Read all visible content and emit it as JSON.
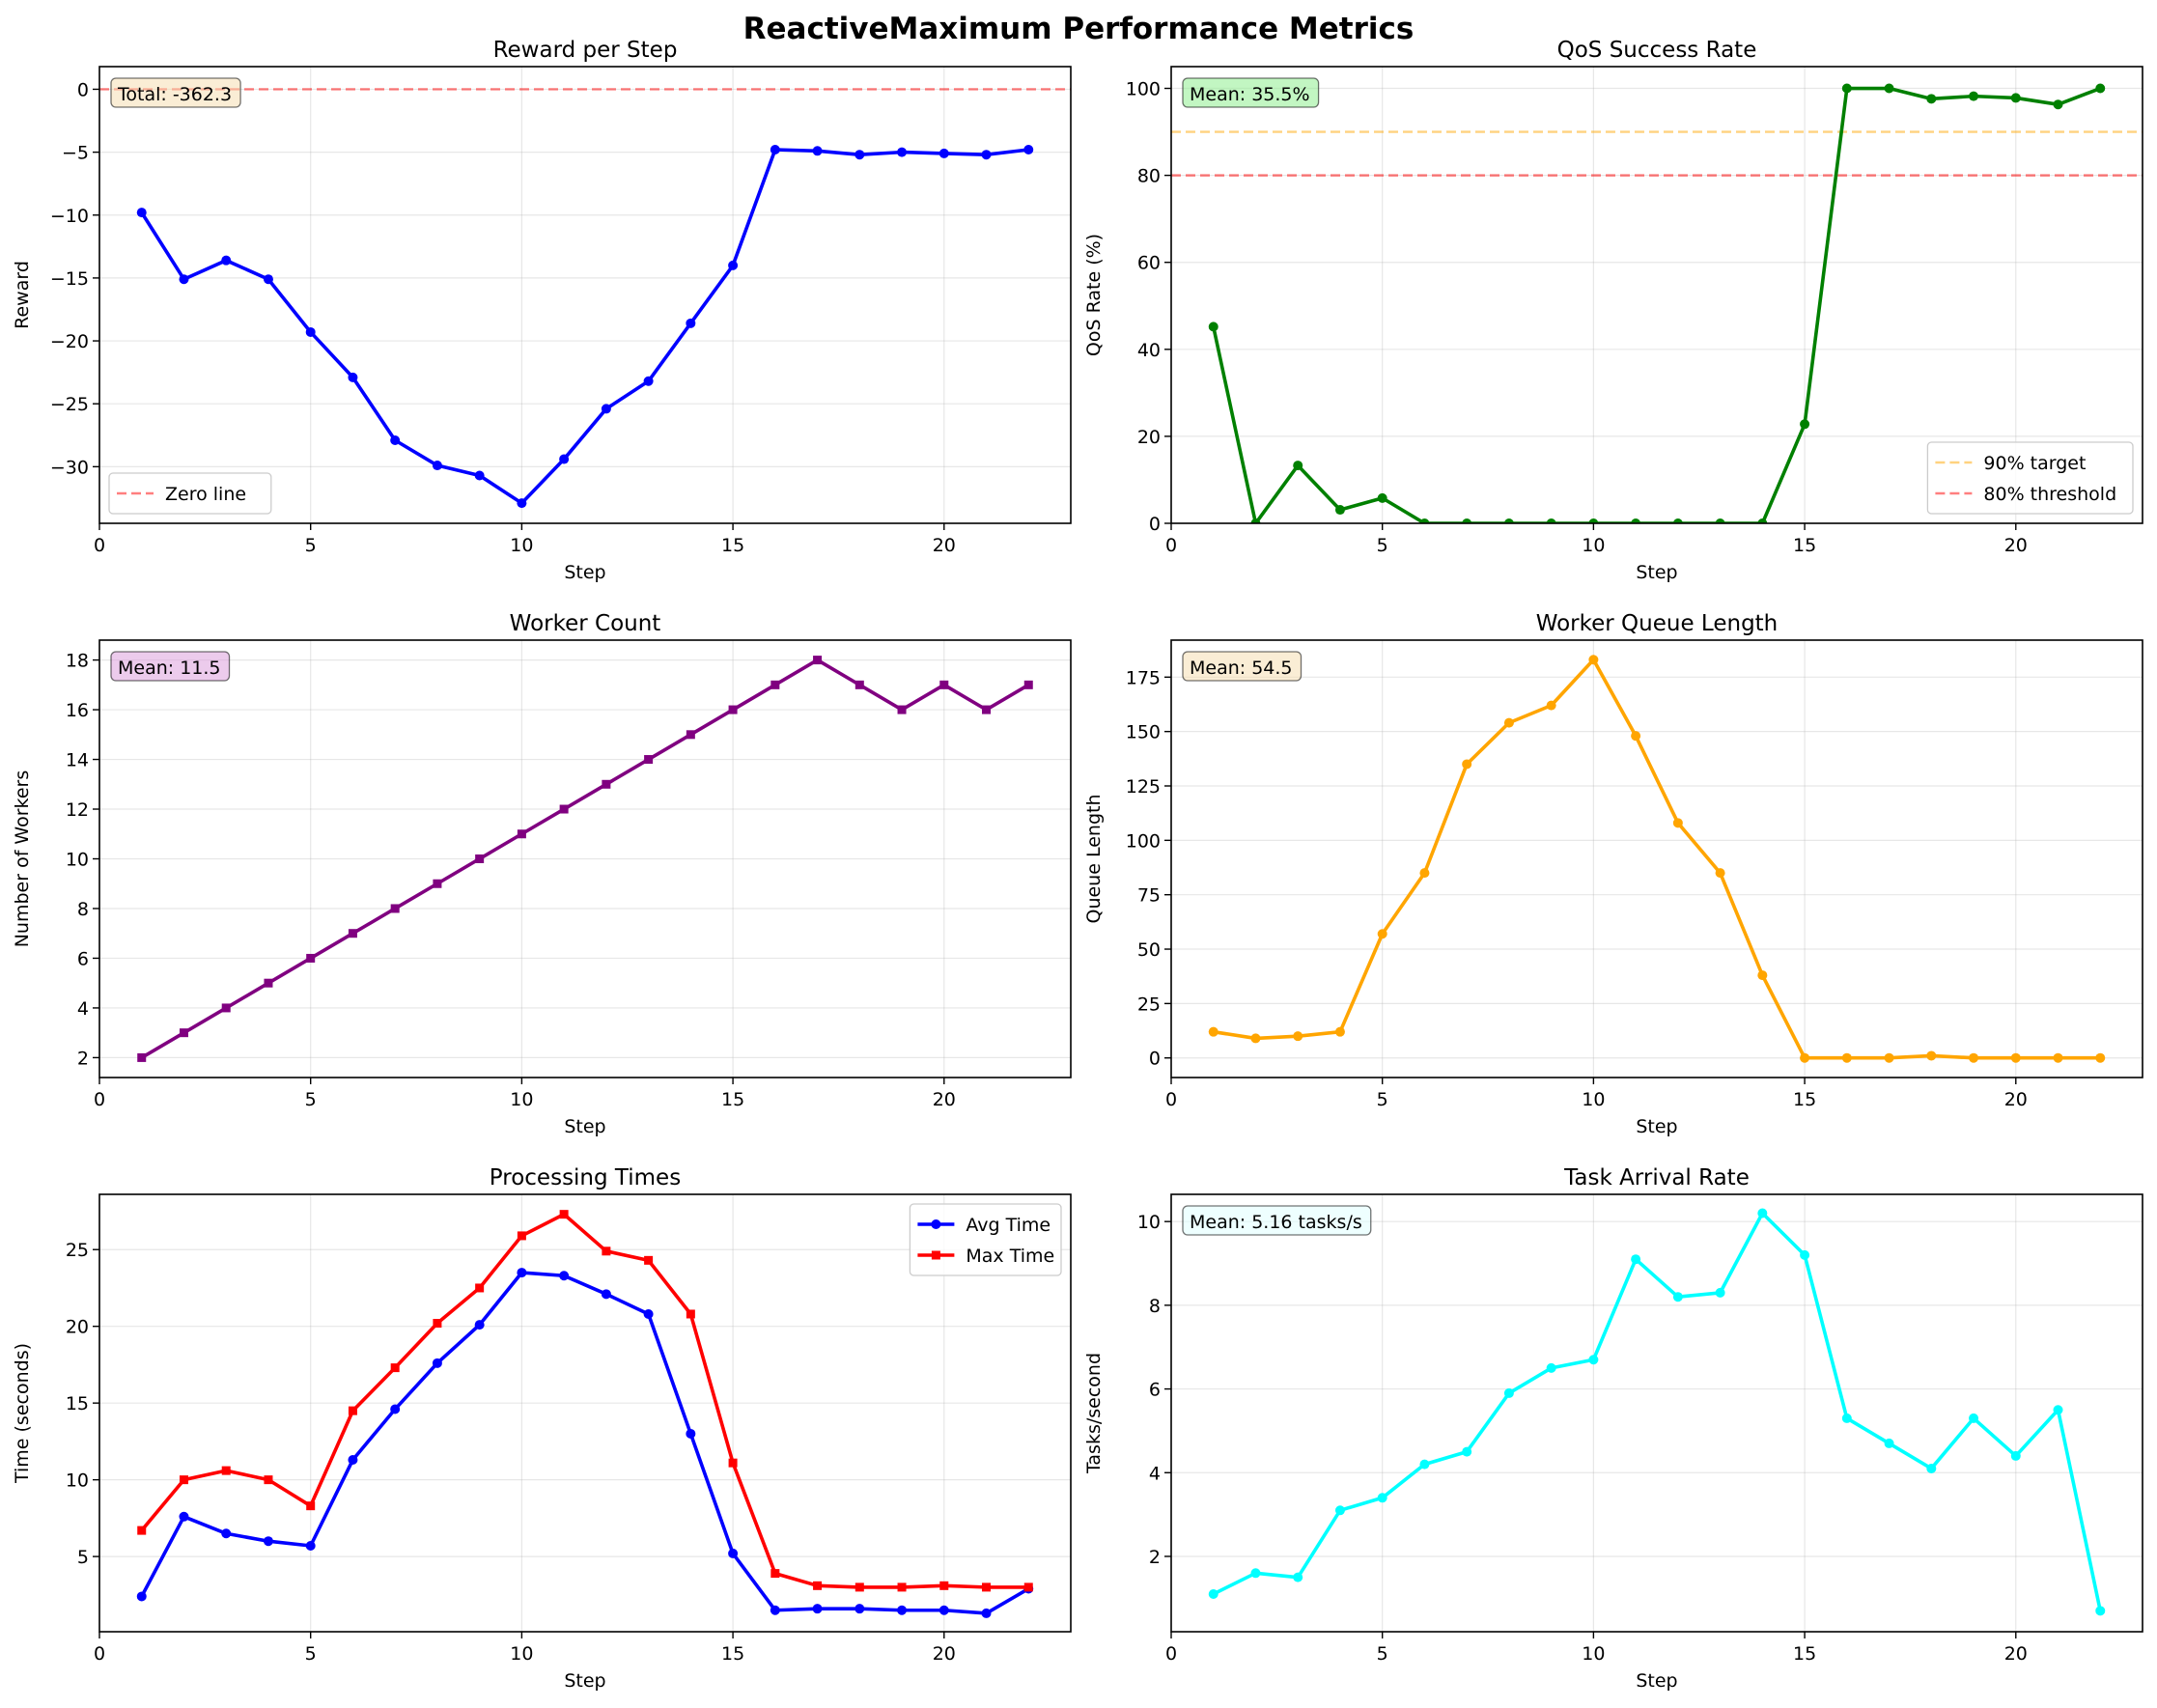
{
  "figure": {
    "title": "ReactiveMaximum Performance Metrics"
  },
  "chart_data": [
    {
      "type": "line",
      "title": "Reward per Step",
      "xlabel": "Step",
      "ylabel": "Reward",
      "xlim": [
        0,
        23
      ],
      "ylim": [
        -34.5,
        1.8
      ],
      "xticks": [
        0,
        5,
        10,
        15,
        20
      ],
      "yticks": [
        -30,
        -25,
        -20,
        -15,
        -10,
        -5,
        0
      ],
      "grid": true,
      "x": [
        1,
        2,
        3,
        4,
        5,
        6,
        7,
        8,
        9,
        10,
        11,
        12,
        13,
        14,
        15,
        16,
        17,
        18,
        19,
        20,
        21,
        22
      ],
      "series": [
        {
          "values": [
            -9.8,
            -15.1,
            -13.6,
            -15.1,
            -19.3,
            -22.9,
            -27.9,
            -29.9,
            -30.7,
            -32.9,
            -29.4,
            -25.4,
            -23.2,
            -18.6,
            -14.0,
            -4.8,
            -4.9,
            -5.2,
            -5.0,
            -5.1,
            -5.2,
            -4.8
          ],
          "color": "#0000ff",
          "marker": "circle"
        }
      ],
      "hlines": [
        {
          "y": 0,
          "name": "Zero line",
          "color": "#ff0000"
        }
      ],
      "annotation": "Total: -362.3",
      "annotation_color": "#f5deb3",
      "legend": "lower-left"
    },
    {
      "type": "line",
      "title": "QoS Success Rate",
      "xlabel": "Step",
      "ylabel": "QoS Rate (%)",
      "xlim": [
        0,
        23
      ],
      "ylim": [
        0,
        105
      ],
      "xticks": [
        0,
        5,
        10,
        15,
        20
      ],
      "yticks": [
        0,
        20,
        40,
        60,
        80,
        100
      ],
      "grid": true,
      "x": [
        1,
        2,
        3,
        4,
        5,
        6,
        7,
        8,
        9,
        10,
        11,
        12,
        13,
        14,
        15,
        16,
        17,
        18,
        19,
        20,
        21,
        22
      ],
      "series": [
        {
          "values": [
            45.2,
            0,
            13.3,
            3.1,
            5.8,
            0,
            0,
            0,
            0,
            0,
            0,
            0,
            0,
            0,
            22.8,
            100,
            100,
            97.6,
            98.2,
            97.8,
            96.3,
            100
          ],
          "color": "#008000",
          "marker": "circle"
        }
      ],
      "hlines": [
        {
          "y": 90,
          "name": "90% target",
          "color": "#ffa500"
        },
        {
          "y": 80,
          "name": "80% threshold",
          "color": "#ff0000"
        }
      ],
      "annotation": "Mean: 35.5%",
      "annotation_color": "#90ee90",
      "legend": "lower-right"
    },
    {
      "type": "line",
      "title": "Worker Count",
      "xlabel": "Step",
      "ylabel": "Number of Workers",
      "xlim": [
        0,
        23
      ],
      "ylim": [
        1.2,
        18.8
      ],
      "xticks": [
        0,
        5,
        10,
        15,
        20
      ],
      "yticks": [
        2,
        4,
        6,
        8,
        10,
        12,
        14,
        16,
        18
      ],
      "grid": true,
      "x": [
        1,
        2,
        3,
        4,
        5,
        6,
        7,
        8,
        9,
        10,
        11,
        12,
        13,
        14,
        15,
        16,
        17,
        18,
        19,
        20,
        21,
        22
      ],
      "series": [
        {
          "values": [
            2,
            3,
            4,
            5,
            6,
            7,
            8,
            9,
            10,
            11,
            12,
            13,
            14,
            15,
            16,
            17,
            18,
            17,
            16,
            17,
            16,
            17
          ],
          "color": "#800080",
          "marker": "square"
        }
      ],
      "hlines": [],
      "annotation": "Mean: 11.5",
      "annotation_color": "#dda0dd",
      "legend": "none"
    },
    {
      "type": "line",
      "title": "Worker Queue Length",
      "xlabel": "Step",
      "ylabel": "Queue Length",
      "xlim": [
        0,
        23
      ],
      "ylim": [
        -9,
        192
      ],
      "xticks": [
        0,
        5,
        10,
        15,
        20
      ],
      "yticks": [
        0,
        25,
        50,
        75,
        100,
        125,
        150,
        175
      ],
      "grid": true,
      "x": [
        1,
        2,
        3,
        4,
        5,
        6,
        7,
        8,
        9,
        10,
        11,
        12,
        13,
        14,
        15,
        16,
        17,
        18,
        19,
        20,
        21,
        22
      ],
      "series": [
        {
          "values": [
            12,
            9,
            10,
            12,
            57,
            85,
            135,
            154,
            162,
            183,
            148,
            108,
            85,
            38,
            0,
            0,
            0,
            1,
            0,
            0,
            0,
            0
          ],
          "color": "#ffa500",
          "marker": "circle"
        }
      ],
      "hlines": [],
      "annotation": "Mean: 54.5",
      "annotation_color": "#f5deb3",
      "legend": "none"
    },
    {
      "type": "line",
      "title": "Processing Times",
      "xlabel": "Step",
      "ylabel": "Time (seconds)",
      "xlim": [
        0,
        23
      ],
      "ylim": [
        0.1,
        28.6
      ],
      "xticks": [
        0,
        5,
        10,
        15,
        20
      ],
      "yticks": [
        5,
        10,
        15,
        20,
        25
      ],
      "grid": true,
      "x": [
        1,
        2,
        3,
        4,
        5,
        6,
        7,
        8,
        9,
        10,
        11,
        12,
        13,
        14,
        15,
        16,
        17,
        18,
        19,
        20,
        21,
        22
      ],
      "series": [
        {
          "name": "Avg Time",
          "values": [
            2.4,
            7.6,
            6.5,
            6.0,
            5.7,
            11.3,
            14.6,
            17.6,
            20.1,
            23.5,
            23.3,
            22.1,
            20.8,
            13.0,
            5.2,
            1.5,
            1.6,
            1.6,
            1.5,
            1.5,
            1.3,
            2.9
          ],
          "color": "#0000ff",
          "marker": "circle"
        },
        {
          "name": "Max Time",
          "values": [
            6.7,
            10.0,
            10.6,
            10.0,
            8.3,
            14.5,
            17.3,
            20.2,
            22.5,
            25.9,
            27.3,
            24.9,
            24.3,
            20.8,
            11.1,
            3.9,
            3.1,
            3.0,
            3.0,
            3.1,
            3.0,
            3.0
          ],
          "color": "#ff0000",
          "marker": "square"
        }
      ],
      "hlines": [],
      "annotation": "",
      "annotation_color": "",
      "legend": "upper-right"
    },
    {
      "type": "line",
      "title": "Task Arrival Rate",
      "xlabel": "Step",
      "ylabel": "Tasks/second",
      "xlim": [
        0,
        23
      ],
      "ylim": [
        0.2,
        10.65
      ],
      "xticks": [
        0,
        5,
        10,
        15,
        20
      ],
      "yticks": [
        2,
        4,
        6,
        8,
        10
      ],
      "grid": true,
      "x": [
        1,
        2,
        3,
        4,
        5,
        6,
        7,
        8,
        9,
        10,
        11,
        12,
        13,
        14,
        15,
        16,
        17,
        18,
        19,
        20,
        21,
        22
      ],
      "series": [
        {
          "values": [
            1.1,
            1.6,
            1.5,
            3.1,
            3.4,
            4.2,
            4.5,
            5.9,
            6.5,
            6.7,
            9.1,
            8.2,
            8.3,
            10.2,
            9.2,
            5.3,
            4.7,
            4.1,
            5.3,
            4.4,
            5.5,
            0.7
          ],
          "color": "#00ffff",
          "marker": "circle"
        }
      ],
      "hlines": [],
      "annotation": "Mean: 5.16 tasks/s",
      "annotation_color": "#e0ffff",
      "legend": "none"
    }
  ]
}
